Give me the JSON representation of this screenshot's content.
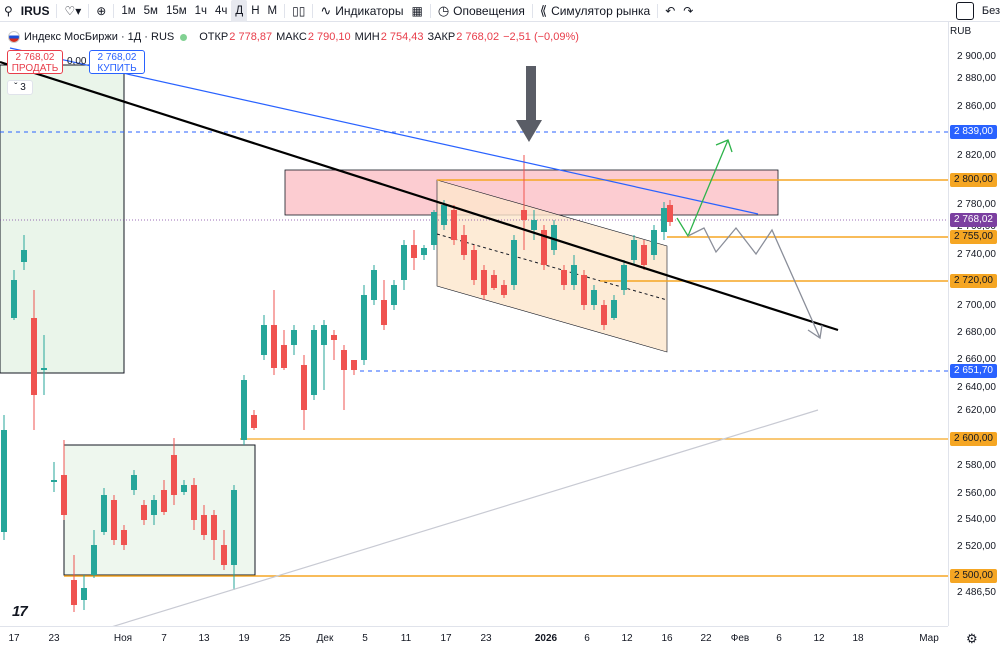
{
  "toolbar": {
    "ticker": "IRUS",
    "intervals": [
      "1м",
      "5м",
      "15м",
      "1ч",
      "4ч",
      "Д",
      "Н",
      "М"
    ],
    "active_interval": "Д",
    "indicators_label": "Индикаторы",
    "alerts_label": "Оповещения",
    "replay_label": "Симулятор рынка",
    "right_cut_label": "Без"
  },
  "legend": {
    "title": "Индекс МосБиржи · 1Д · RUS",
    "open_label": "ОТКР",
    "open": "2 778,87",
    "high_label": "МАКС",
    "high": "2 790,10",
    "low_label": "МИН",
    "low": "2 754,43",
    "close_label": "ЗАКР",
    "close": "2 768,02",
    "change": "−2,51 (−0,09%)"
  },
  "trade": {
    "sell_price": "2 768,02",
    "sell_label": "ПРОДАТЬ",
    "spread": "0,00",
    "buy_price": "2 768,02",
    "buy_label": "КУПИТЬ",
    "collapse_count": "3"
  },
  "price_axis": {
    "currency": "RUB",
    "ticks": [
      "2 900,00",
      "2 880,00",
      "2 860,00",
      "2 840,00",
      "2 820,00",
      "2 800,00",
      "2 780,00",
      "2 760,00",
      "2 740,00",
      "2 720,00",
      "2 700,00",
      "2 680,00",
      "2 660,00",
      "2 640,00",
      "2 620,00",
      "2 600,00",
      "2 580,00",
      "2 560,00",
      "2 540,00",
      "2 520,00",
      "2 500,00",
      "2 486,50"
    ],
    "tags": [
      {
        "label": "2 839,00",
        "bg": "#2962ff",
        "fg": "#ffffff"
      },
      {
        "label": "2 800,00",
        "bg": "#f5a623",
        "fg": "#131722"
      },
      {
        "label": "2 768,02",
        "bg": "#7b3fa0",
        "fg": "#ffffff"
      },
      {
        "label": "2 755,00",
        "bg": "#f5a623",
        "fg": "#131722"
      },
      {
        "label": "2 720,00",
        "bg": "#f5a623",
        "fg": "#131722"
      },
      {
        "label": "2 651,70",
        "bg": "#2962ff",
        "fg": "#ffffff"
      },
      {
        "label": "2 600,00",
        "bg": "#f5a623",
        "fg": "#131722"
      },
      {
        "label": "2 500,00",
        "bg": "#f5a623",
        "fg": "#131722"
      }
    ]
  },
  "time_axis": {
    "labels": [
      "17",
      "23",
      "Ноя",
      "7",
      "13",
      "19",
      "25",
      "Дек",
      "5",
      "11",
      "17",
      "23",
      "2026",
      "6",
      "12",
      "16",
      "22",
      "Фев",
      "6",
      "12",
      "18",
      "Мар"
    ],
    "bold": [
      "2026"
    ]
  },
  "colors": {
    "up": "#26a69a",
    "down": "#ef5350",
    "trend_black": "#000000",
    "trend_blue": "#2962ff",
    "level_orange": "#f5a623",
    "zone_red": "#f7a3ad",
    "channel_fill": "#fde3c4",
    "green_box": "#e9f5e9"
  },
  "icons": [
    "heart-icon",
    "plus-icon",
    "candles-icon",
    "indicators-icon",
    "alarm-icon",
    "replay-icon",
    "undo-icon",
    "redo-icon",
    "settings-icon"
  ]
}
